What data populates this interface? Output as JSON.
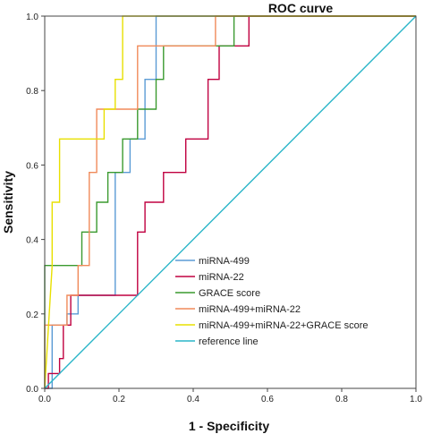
{
  "chart_data": {
    "type": "line",
    "title": "ROC curve",
    "xlabel": "1 - Specificity",
    "ylabel": "Sensitivity",
    "xlim": [
      0,
      1
    ],
    "ylim": [
      0,
      1
    ],
    "x_ticks": [
      "0.0",
      "0.2",
      "0.4",
      "0.6",
      "0.8",
      "1.0"
    ],
    "y_ticks": [
      "0.0",
      "0.2",
      "0.4",
      "0.6",
      "0.8",
      "1.0"
    ],
    "grid": false,
    "legend_position": "bottom-right",
    "series": [
      {
        "name": "miRNA-499",
        "color": "#5b9bd5",
        "x": [
          0,
          0.02,
          0.02,
          0.06,
          0.06,
          0.09,
          0.09,
          0.19,
          0.19,
          0.23,
          0.23,
          0.27,
          0.27,
          0.3,
          0.3,
          1.0
        ],
        "y": [
          0,
          0,
          0.17,
          0.17,
          0.2,
          0.2,
          0.25,
          0.25,
          0.58,
          0.58,
          0.67,
          0.67,
          0.83,
          0.83,
          1.0,
          1.0
        ]
      },
      {
        "name": "miRNA-22",
        "color": "#c00040",
        "x": [
          0,
          0.01,
          0.01,
          0.04,
          0.04,
          0.05,
          0.05,
          0.07,
          0.07,
          0.25,
          0.25,
          0.27,
          0.27,
          0.32,
          0.32,
          0.38,
          0.38,
          0.44,
          0.44,
          0.47,
          0.47,
          0.55,
          0.55,
          1.0
        ],
        "y": [
          0,
          0,
          0.04,
          0.04,
          0.08,
          0.08,
          0.17,
          0.17,
          0.25,
          0.25,
          0.42,
          0.42,
          0.5,
          0.5,
          0.58,
          0.58,
          0.67,
          0.67,
          0.83,
          0.83,
          0.92,
          0.92,
          1.0,
          1.0
        ]
      },
      {
        "name": "GRACE score",
        "color": "#3a9a2f",
        "x": [
          0,
          0,
          0.1,
          0.1,
          0.14,
          0.14,
          0.17,
          0.17,
          0.21,
          0.21,
          0.25,
          0.25,
          0.3,
          0.3,
          0.32,
          0.32,
          0.37,
          0.37,
          0.51,
          0.51,
          1.0
        ],
        "y": [
          0,
          0.33,
          0.33,
          0.42,
          0.42,
          0.5,
          0.5,
          0.58,
          0.58,
          0.67,
          0.67,
          0.75,
          0.75,
          0.83,
          0.83,
          0.92,
          0.92,
          0.92,
          0.92,
          1.0,
          1.0
        ]
      },
      {
        "name": "miRNA-499+miRNA-22",
        "color": "#f08a5a",
        "x": [
          0,
          0,
          0.06,
          0.06,
          0.09,
          0.09,
          0.12,
          0.12,
          0.14,
          0.14,
          0.25,
          0.25,
          0.37,
          0.37,
          0.46,
          0.46,
          1.0
        ],
        "y": [
          0,
          0.17,
          0.17,
          0.25,
          0.25,
          0.33,
          0.33,
          0.58,
          0.58,
          0.75,
          0.75,
          0.92,
          0.92,
          0.92,
          0.92,
          1.0,
          1.0
        ]
      },
      {
        "name": "miRNA-499+miRNA-22+GRACE score",
        "color": "#e8e000",
        "x": [
          0,
          0.02,
          0.02,
          0.04,
          0.04,
          0.16,
          0.16,
          0.19,
          0.19,
          0.21,
          0.21,
          1.0
        ],
        "y": [
          0,
          0.33,
          0.5,
          0.5,
          0.67,
          0.67,
          0.75,
          0.75,
          0.83,
          0.83,
          1.0,
          1.0
        ]
      },
      {
        "name": "reference line",
        "color": "#2ab5c8",
        "x": [
          0,
          1
        ],
        "y": [
          0,
          1
        ]
      }
    ]
  }
}
